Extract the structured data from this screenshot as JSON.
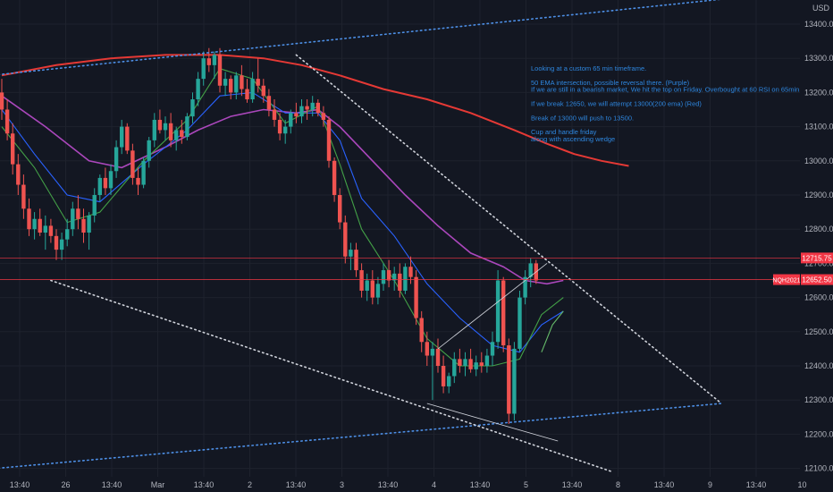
{
  "chart_data": {
    "type": "candlestick",
    "symbol": "NQH2021",
    "currency": "USD",
    "y_ticks": [
      13400,
      13300,
      13200,
      13100,
      13000,
      12900,
      12800,
      12700,
      12600,
      12500,
      12400,
      12300,
      12200,
      12100
    ],
    "ylim": [
      12070,
      13460
    ],
    "x_ticks": [
      "13:40",
      "26",
      "13:40",
      "Mar",
      "13:40",
      "2",
      "13:40",
      "3",
      "13:40",
      "4",
      "13:40",
      "5",
      "13:40",
      "8",
      "13:40",
      "9",
      "13:40",
      "10"
    ],
    "horizontal_levels": [
      {
        "label": "12715.75",
        "value": 12715.75,
        "color": "#f23645"
      },
      {
        "label": "12652.50",
        "value": 12652.5,
        "color": "#f23645"
      }
    ],
    "price_tag_symbol": "NQH2021",
    "candles": [
      [
        13200,
        13240,
        13120,
        13150
      ],
      [
        13150,
        13180,
        13060,
        13080
      ],
      [
        13080,
        13110,
        12960,
        12990
      ],
      [
        12990,
        13020,
        12900,
        12930
      ],
      [
        12930,
        12960,
        12830,
        12860
      ],
      [
        12860,
        12890,
        12780,
        12800
      ],
      [
        12800,
        12850,
        12770,
        12830
      ],
      [
        12830,
        12860,
        12780,
        12790
      ],
      [
        12790,
        12840,
        12740,
        12810
      ],
      [
        12810,
        12830,
        12760,
        12780
      ],
      [
        12780,
        12800,
        12710,
        12740
      ],
      [
        12740,
        12790,
        12710,
        12770
      ],
      [
        12770,
        12830,
        12750,
        12800
      ],
      [
        12800,
        12880,
        12780,
        12860
      ],
      [
        12860,
        12900,
        12800,
        12830
      ],
      [
        12830,
        12860,
        12760,
        12790
      ],
      [
        12790,
        12850,
        12740,
        12840
      ],
      [
        12840,
        12920,
        12820,
        12900
      ],
      [
        12900,
        12960,
        12880,
        12950
      ],
      [
        12950,
        12980,
        12900,
        12920
      ],
      [
        12920,
        12990,
        12900,
        12970
      ],
      [
        12970,
        13060,
        12950,
        13040
      ],
      [
        13040,
        13120,
        13020,
        13100
      ],
      [
        13100,
        13110,
        13020,
        13030
      ],
      [
        13030,
        13050,
        12930,
        12950
      ],
      [
        12950,
        12980,
        12900,
        12930
      ],
      [
        12930,
        13010,
        12920,
        13000
      ],
      [
        13000,
        13070,
        12980,
        13060
      ],
      [
        13060,
        13140,
        13040,
        13120
      ],
      [
        13120,
        13150,
        13080,
        13090
      ],
      [
        13090,
        13130,
        13060,
        13110
      ],
      [
        13110,
        13140,
        13040,
        13060
      ],
      [
        13060,
        13100,
        13030,
        13090
      ],
      [
        13090,
        13120,
        13050,
        13070
      ],
      [
        13070,
        13140,
        13060,
        13130
      ],
      [
        13130,
        13200,
        13110,
        13180
      ],
      [
        13180,
        13260,
        13160,
        13240
      ],
      [
        13240,
        13320,
        13220,
        13300
      ],
      [
        13300,
        13330,
        13260,
        13280
      ],
      [
        13280,
        13320,
        13240,
        13310
      ],
      [
        13310,
        13330,
        13200,
        13220
      ],
      [
        13220,
        13260,
        13190,
        13240
      ],
      [
        13240,
        13250,
        13180,
        13200
      ],
      [
        13200,
        13260,
        13180,
        13250
      ],
      [
        13250,
        13280,
        13190,
        13210
      ],
      [
        13210,
        13240,
        13170,
        13180
      ],
      [
        13180,
        13260,
        13170,
        13240
      ],
      [
        13240,
        13300,
        13200,
        13220
      ],
      [
        13220,
        13240,
        13170,
        13190
      ],
      [
        13190,
        13210,
        13130,
        13150
      ],
      [
        13150,
        13180,
        13100,
        13120
      ],
      [
        13120,
        13140,
        13060,
        13080
      ],
      [
        13080,
        13120,
        13050,
        13100
      ],
      [
        13100,
        13150,
        13080,
        13140
      ],
      [
        13140,
        13170,
        13110,
        13130
      ],
      [
        13130,
        13180,
        13110,
        13160
      ],
      [
        13160,
        13180,
        13120,
        13150
      ],
      [
        13150,
        13190,
        13130,
        13170
      ],
      [
        13170,
        13180,
        13130,
        13140
      ],
      [
        13140,
        13160,
        13100,
        13120
      ],
      [
        13120,
        13130,
        12980,
        13000
      ],
      [
        13000,
        13010,
        12880,
        12900
      ],
      [
        12900,
        12920,
        12800,
        12820
      ],
      [
        12820,
        12840,
        12700,
        12720
      ],
      [
        12720,
        12760,
        12680,
        12740
      ],
      [
        12740,
        12760,
        12660,
        12680
      ],
      [
        12680,
        12700,
        12600,
        12620
      ],
      [
        12620,
        12670,
        12590,
        12650
      ],
      [
        12650,
        12680,
        12580,
        12600
      ],
      [
        12600,
        12660,
        12580,
        12640
      ],
      [
        12640,
        12700,
        12620,
        12680
      ],
      [
        12680,
        12710,
        12630,
        12650
      ],
      [
        12650,
        12690,
        12620,
        12670
      ],
      [
        12670,
        12700,
        12600,
        12620
      ],
      [
        12620,
        12700,
        12610,
        12690
      ],
      [
        12690,
        12720,
        12640,
        12660
      ],
      [
        12660,
        12680,
        12520,
        12540
      ],
      [
        12540,
        12560,
        12440,
        12470
      ],
      [
        12470,
        12500,
        12400,
        12430
      ],
      [
        12430,
        12470,
        12300,
        12450
      ],
      [
        12450,
        12480,
        12380,
        12400
      ],
      [
        12400,
        12430,
        12320,
        12340
      ],
      [
        12340,
        12380,
        12320,
        12370
      ],
      [
        12370,
        12440,
        12350,
        12420
      ],
      [
        12420,
        12450,
        12380,
        12400
      ],
      [
        12400,
        12440,
        12370,
        12420
      ],
      [
        12420,
        12450,
        12380,
        12390
      ],
      [
        12390,
        12430,
        12370,
        12410
      ],
      [
        12410,
        12440,
        12380,
        12400
      ],
      [
        12400,
        12450,
        12380,
        12430
      ],
      [
        12430,
        12500,
        12400,
        12470
      ],
      [
        12470,
        12680,
        12450,
        12650
      ],
      [
        12650,
        12660,
        12440,
        12460
      ],
      [
        12460,
        12480,
        12230,
        12260
      ],
      [
        12260,
        12470,
        12240,
        12450
      ],
      [
        12450,
        12620,
        12440,
        12600
      ],
      [
        12600,
        12680,
        12580,
        12660
      ],
      [
        12660,
        12715,
        12630,
        12700
      ],
      [
        12700,
        12710,
        12640,
        12650
      ]
    ],
    "ma_200_red": [
      [
        0,
        13250
      ],
      [
        10,
        13280
      ],
      [
        20,
        13300
      ],
      [
        30,
        13310
      ],
      [
        40,
        13310
      ],
      [
        48,
        13300
      ],
      [
        55,
        13280
      ],
      [
        62,
        13250
      ],
      [
        70,
        13210
      ],
      [
        78,
        13180
      ],
      [
        86,
        13140
      ],
      [
        94,
        13090
      ],
      [
        100,
        13050
      ],
      [
        105,
        13020
      ],
      [
        110,
        13000
      ],
      [
        115,
        12985
      ]
    ],
    "ema_50_purple": [
      [
        0,
        13190
      ],
      [
        8,
        13100
      ],
      [
        16,
        13000
      ],
      [
        22,
        12980
      ],
      [
        30,
        13040
      ],
      [
        36,
        13090
      ],
      [
        42,
        13130
      ],
      [
        48,
        13150
      ],
      [
        54,
        13140
      ],
      [
        58,
        13150
      ],
      [
        62,
        13100
      ],
      [
        68,
        13000
      ],
      [
        74,
        12900
      ],
      [
        80,
        12810
      ],
      [
        86,
        12730
      ],
      [
        92,
        12690
      ],
      [
        96,
        12650
      ],
      [
        100,
        12640
      ],
      [
        103,
        12650
      ]
    ],
    "ema_blue": [
      [
        0,
        13150
      ],
      [
        6,
        13020
      ],
      [
        12,
        12900
      ],
      [
        18,
        12880
      ],
      [
        26,
        12990
      ],
      [
        34,
        13090
      ],
      [
        40,
        13190
      ],
      [
        46,
        13200
      ],
      [
        52,
        13140
      ],
      [
        58,
        13140
      ],
      [
        62,
        13060
      ],
      [
        66,
        12890
      ],
      [
        72,
        12780
      ],
      [
        78,
        12640
      ],
      [
        84,
        12540
      ],
      [
        90,
        12460
      ],
      [
        95,
        12440
      ],
      [
        99,
        12520
      ],
      [
        103,
        12560
      ]
    ],
    "ema_green": [
      [
        0,
        13100
      ],
      [
        6,
        12980
      ],
      [
        12,
        12820
      ],
      [
        18,
        12850
      ],
      [
        26,
        13000
      ],
      [
        34,
        13120
      ],
      [
        40,
        13270
      ],
      [
        46,
        13240
      ],
      [
        52,
        13110
      ],
      [
        58,
        13160
      ],
      [
        62,
        12990
      ],
      [
        66,
        12800
      ],
      [
        72,
        12650
      ],
      [
        78,
        12480
      ],
      [
        84,
        12400
      ],
      [
        90,
        12400
      ],
      [
        95,
        12420
      ],
      [
        99,
        12550
      ],
      [
        103,
        12600
      ]
    ],
    "ema_green_light": [
      [
        99,
        12440
      ],
      [
        101,
        12520
      ],
      [
        103,
        12560
      ]
    ],
    "annotation_lines": [
      {
        "style": "dotted",
        "color": "#4d8fe6",
        "p1": [
          -8,
          13240
        ],
        "p2": [
          132,
          13473
        ]
      },
      {
        "style": "dotted",
        "color": "#4d8fe6",
        "p1": [
          -8,
          12090
        ],
        "p2": [
          132,
          12290
        ]
      },
      {
        "style": "dotted",
        "color": "#d1d4dc",
        "p1": [
          54,
          13310
        ],
        "p2": [
          132,
          12290
        ]
      },
      {
        "style": "dotted",
        "color": "#d1d4dc",
        "p1": [
          9,
          12650
        ],
        "p2": [
          112,
          12090
        ]
      },
      {
        "style": "solid",
        "color": "#d1d4dc",
        "p1": [
          80,
          12450
        ],
        "p2": [
          100,
          12700
        ]
      },
      {
        "style": "solid",
        "color": "#d1d4dc",
        "p1": [
          78,
          12290
        ],
        "p2": [
          102,
          12180
        ]
      }
    ],
    "notes": [
      "Looking at a custom 65 min timeframe.",
      "",
      "50 EMA intersection, possible reversal there. (Purple)",
      "If we are still in a bearish market, We hit the top on Friday. Overbought at 60 RSI on 65min.",
      "",
      "If we break 12650, we will attempt 13000(200 ema) (Red)",
      "",
      "Break of 13000 will push to 13500.",
      "",
      "Cup and handle friday",
      "along with ascending wedge"
    ],
    "colors": {
      "up": "#26a69a",
      "down": "#ef5350",
      "bg": "#131722",
      "grid": "#1e222d",
      "note": "#2e86de"
    }
  }
}
